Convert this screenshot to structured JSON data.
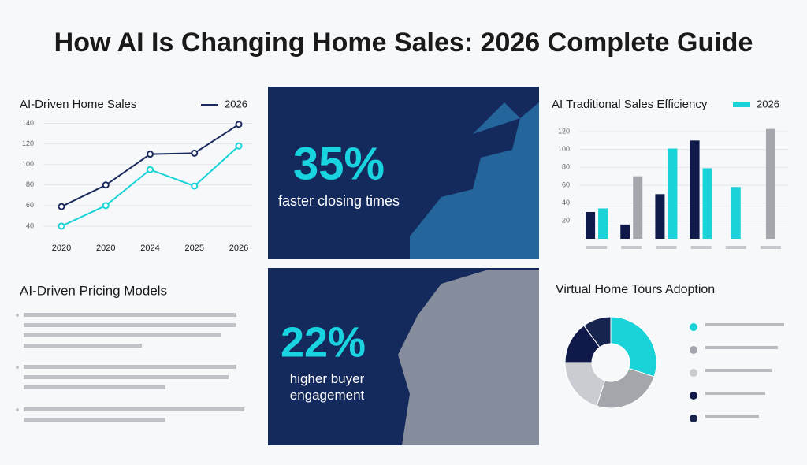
{
  "title": "How AI Is Changing Home Sales: 2026 Complete Guide",
  "stats": [
    {
      "value": "35%",
      "caption": "faster closing times"
    },
    {
      "value": "22%",
      "caption": "higher buyer engagement"
    }
  ],
  "pricing": {
    "heading": "AI-Driven Pricing Models"
  },
  "chart_data": [
    {
      "type": "line",
      "title": "AI-Driven Home Sales",
      "categories": [
        "2020",
        "2020",
        "2024",
        "2025",
        "2026"
      ],
      "series": [
        {
          "name": "2026",
          "color": "#1b2a5c",
          "values": [
            59,
            80,
            110,
            111,
            139
          ]
        },
        {
          "color": "#19d3d8",
          "values": [
            40,
            60,
            95,
            79,
            118
          ]
        }
      ],
      "ylim": [
        30,
        145
      ],
      "yticks": [
        40,
        60,
        80,
        100,
        120,
        140
      ],
      "grid": true
    },
    {
      "type": "bar",
      "title": "AI Traditional Sales Efficiency",
      "categories": [
        null,
        null,
        null,
        null,
        null,
        null
      ],
      "series": [
        {
          "color": "#0f1a4a",
          "values": [
            30,
            16,
            50,
            110,
            null,
            null
          ]
        },
        {
          "name": "2026",
          "color": "#19d3d8",
          "values": [
            34,
            null,
            101,
            79,
            58,
            null
          ]
        },
        {
          "color": "#a3a6ab",
          "values": [
            null,
            70,
            null,
            null,
            null,
            123
          ]
        }
      ],
      "ylim": [
        0,
        135
      ],
      "yticks": [
        20,
        40,
        60,
        80,
        100,
        120
      ],
      "grid": true
    },
    {
      "type": "donut",
      "title": "Virtual Home Tours Adoption",
      "values": [
        30,
        25,
        20,
        15,
        10
      ],
      "colors": [
        "#19d3d8",
        "#a3a6ab",
        "#c9ccd0",
        "#0f1a4a",
        "#16244f"
      ]
    }
  ]
}
